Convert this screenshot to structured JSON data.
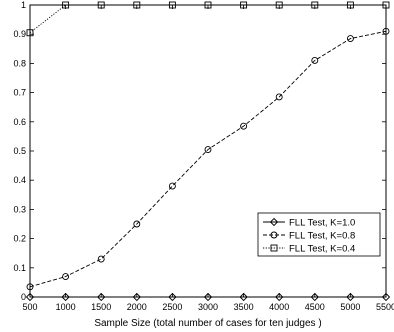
{
  "chart_data": {
    "type": "line",
    "title": "",
    "xlabel": "Sample Size (total number of cases for ten judges )",
    "ylabel": "",
    "xlim": [
      500,
      5500
    ],
    "ylim": [
      0,
      1
    ],
    "grid": false,
    "legend_position": "bottom-right",
    "x": [
      500,
      1000,
      1500,
      2000,
      2500,
      3000,
      3500,
      4000,
      4500,
      5000,
      5500
    ],
    "x_tick_labels": [
      "500",
      "1000",
      "1500",
      "2000",
      "2500",
      "3000",
      "3500",
      "4000",
      "4500",
      "5000",
      "5500"
    ],
    "y_tick_labels": [
      "0",
      "0.1",
      "0.2",
      "0.3",
      "0.4",
      "0.5",
      "0.6",
      "0.7",
      "0.8",
      "0.9",
      "1"
    ],
    "y_ticks": [
      0,
      0.1,
      0.2,
      0.3,
      0.4,
      0.5,
      0.6,
      0.7,
      0.8,
      0.9,
      1.0
    ],
    "series": [
      {
        "name": "FLL Test, K=1.0",
        "marker": "diamond",
        "dash": "solid",
        "color": "#000000",
        "values": [
          0,
          0,
          0,
          0,
          0,
          0,
          0,
          0,
          0,
          0,
          0
        ]
      },
      {
        "name": "FLL Test, K=0.8",
        "marker": "circle",
        "dash": "dashed",
        "color": "#000000",
        "values": [
          0.035,
          0.07,
          0.13,
          0.25,
          0.38,
          0.505,
          0.585,
          0.685,
          0.81,
          0.885,
          0.91
        ]
      },
      {
        "name": "FLL Test, K=0.4",
        "marker": "square",
        "dash": "dotted",
        "color": "#000000",
        "values": [
          0.905,
          1,
          1,
          1,
          1,
          1,
          1,
          1,
          1,
          1,
          1
        ]
      }
    ]
  }
}
